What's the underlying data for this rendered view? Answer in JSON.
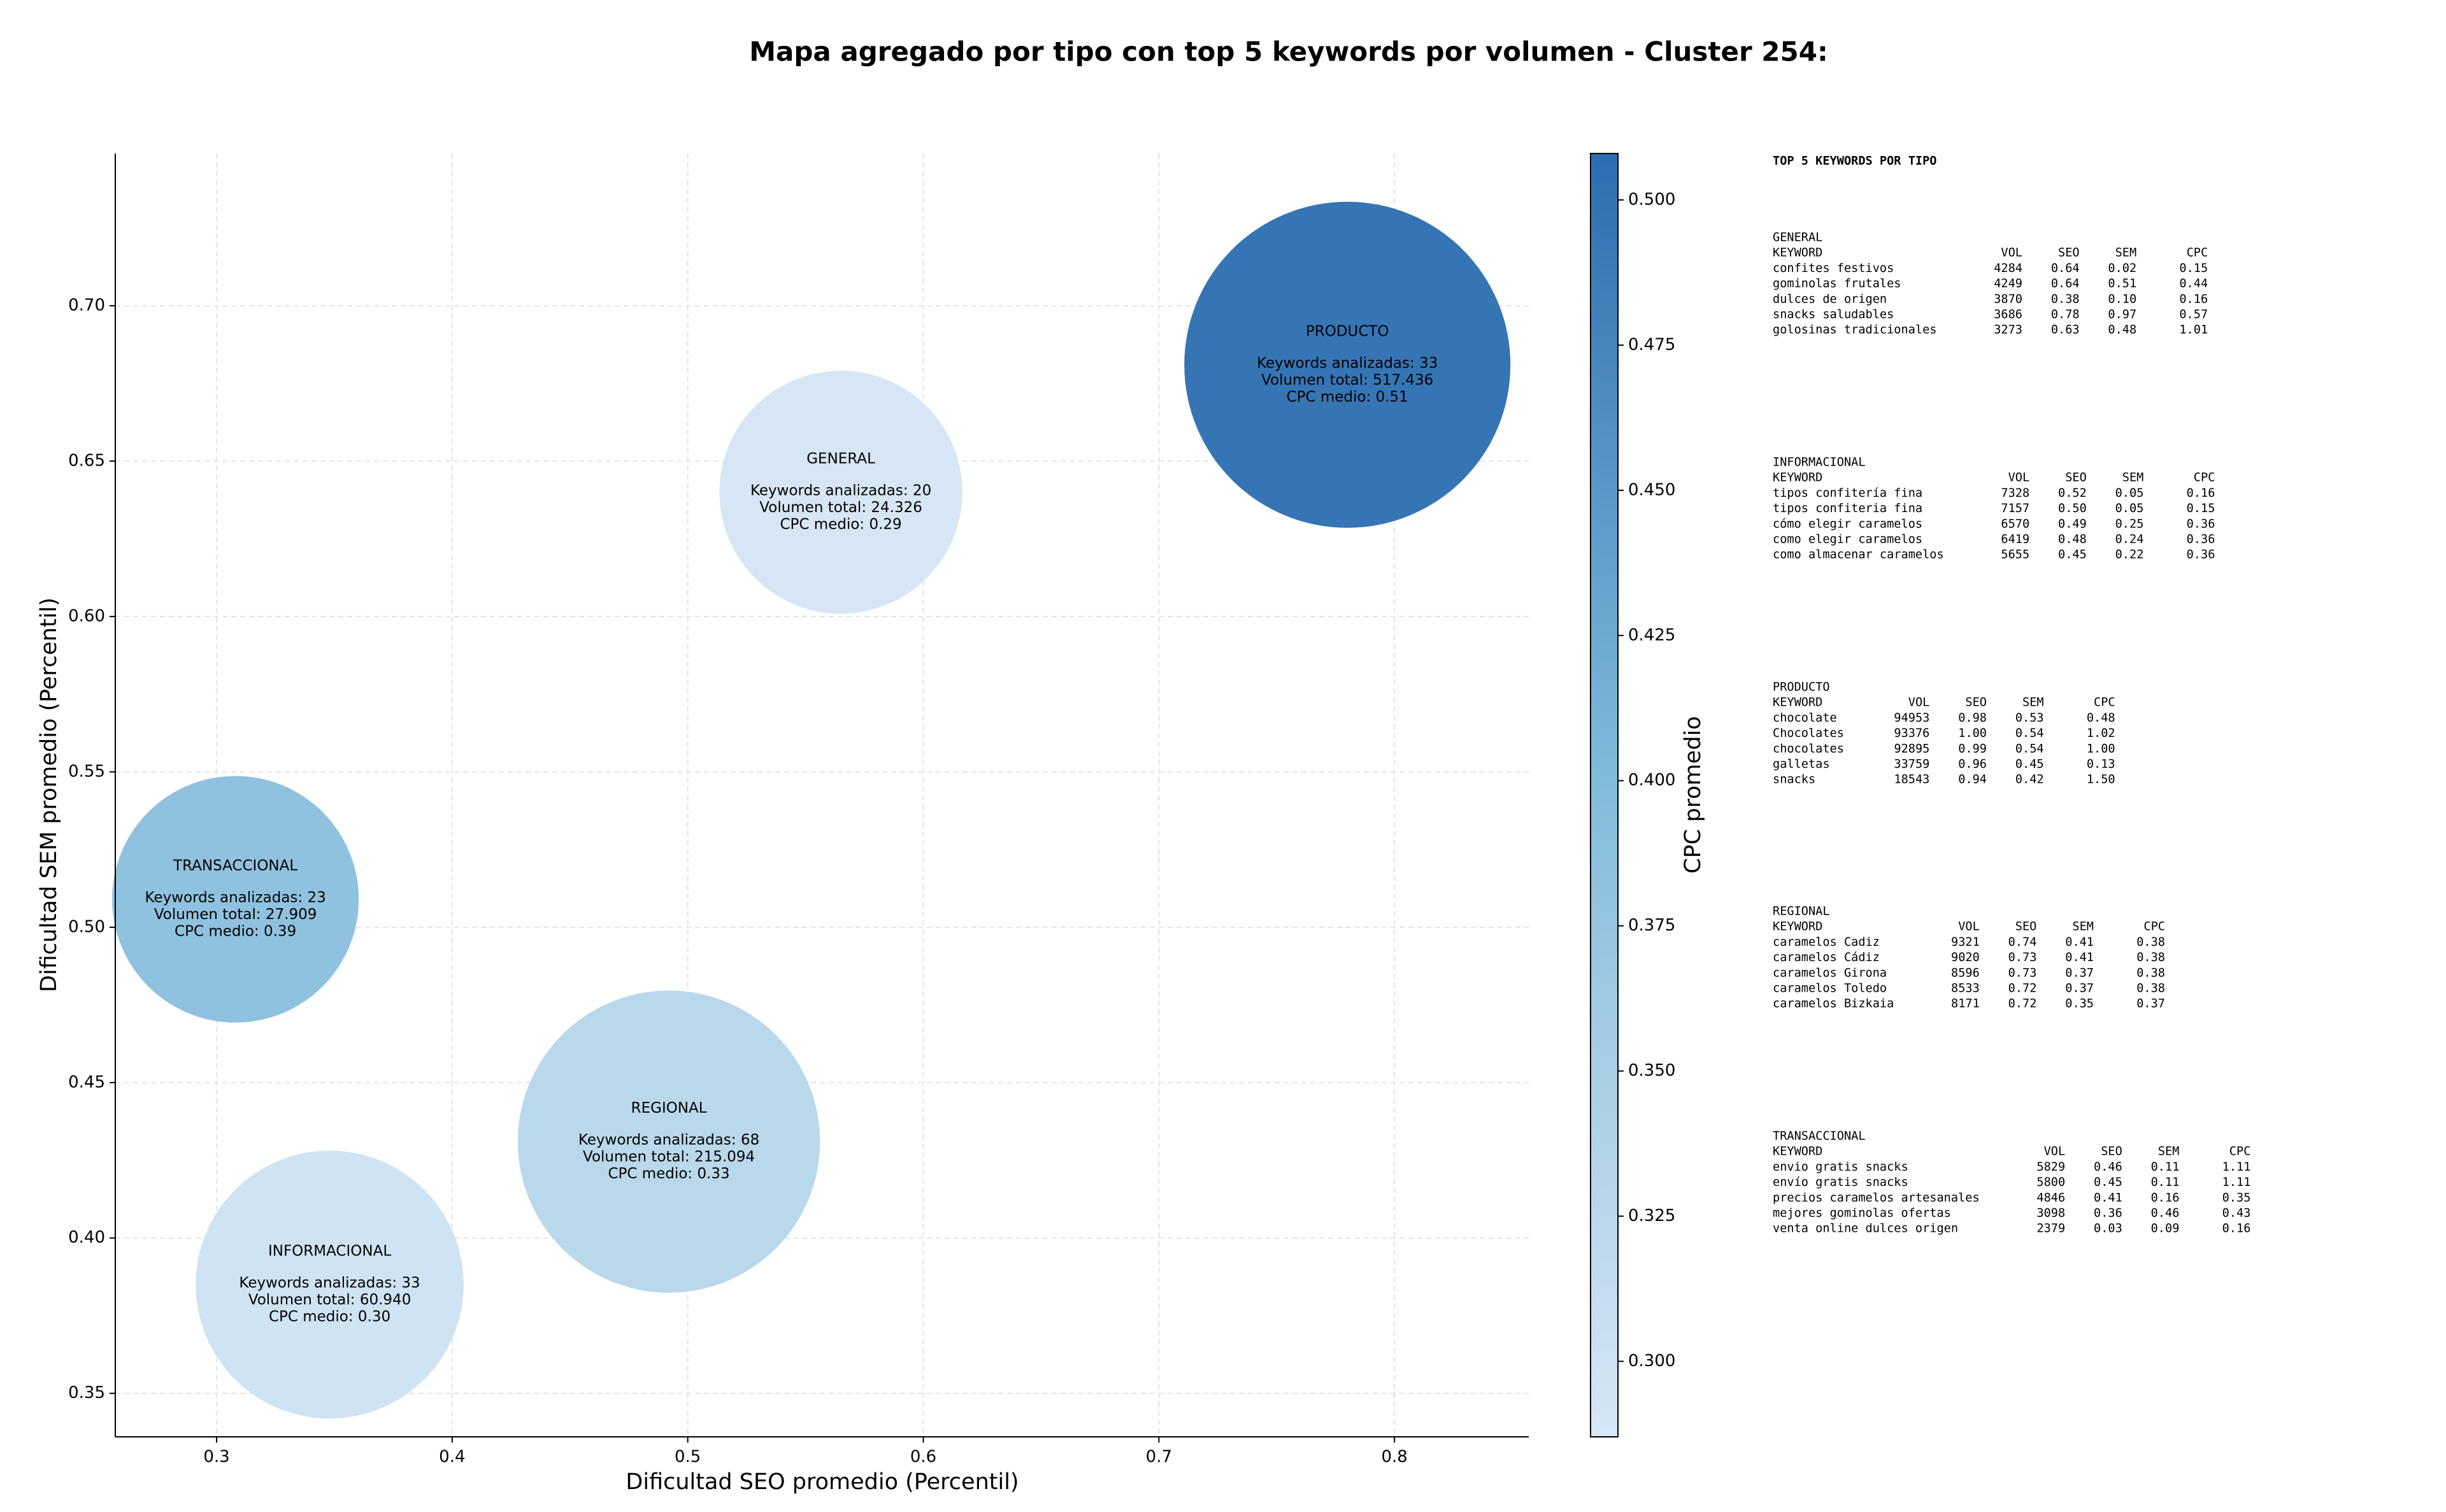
{
  "chart_data": {
    "type": "bubble",
    "title": "Mapa agregado por tipo con top 5 keywords por volumen - Cluster 254:",
    "x_label": "Dificultad SEO promedio (Percentil)",
    "y_label": "Dificultad SEM promedio (Percentil)",
    "xlim": [
      0.257,
      0.857
    ],
    "ylim": [
      0.336,
      0.749
    ],
    "xticks": [
      0.3,
      0.4,
      0.5,
      0.6,
      0.7,
      0.8
    ],
    "yticks": [
      {
        "value": 0.35,
        "label": "0.35"
      },
      {
        "value": 0.4,
        "label": "0.40"
      },
      {
        "value": 0.45,
        "label": "0.45"
      },
      {
        "value": 0.5,
        "label": "0.50"
      },
      {
        "value": 0.55,
        "label": "0.55"
      },
      {
        "value": 0.6,
        "label": "0.60"
      },
      {
        "value": 0.65,
        "label": "0.65"
      },
      {
        "value": 0.7,
        "label": "0.70"
      }
    ],
    "grid": true,
    "colorbar_label": "CPC promedio",
    "clim": [
      0.287,
      0.508
    ],
    "cticks": [
      {
        "value": 0.3,
        "label": "0.300"
      },
      {
        "value": 0.325,
        "label": "0.325"
      },
      {
        "value": 0.35,
        "label": "0.350"
      },
      {
        "value": 0.375,
        "label": "0.375"
      },
      {
        "value": 0.4,
        "label": "0.400"
      },
      {
        "value": 0.425,
        "label": "0.425"
      },
      {
        "value": 0.45,
        "label": "0.450"
      },
      {
        "value": 0.475,
        "label": "0.475"
      },
      {
        "value": 0.5,
        "label": "0.500"
      }
    ],
    "colormap": [
      "#d6e6f4",
      "#84bcdb",
      "#2b6eb0"
    ],
    "series": [
      {
        "labels": [
          "PRODUCTO",
          "GENERAL",
          "TRANSACCIONAL",
          "REGIONAL",
          "INFORMACIONAL"
        ],
        "x": [
          0.78,
          0.565,
          0.308,
          0.492,
          0.348
        ],
        "values": [
          0.681,
          0.64,
          0.509,
          0.431,
          0.385
        ],
        "sizes": [
          517436,
          24326,
          27909,
          215094,
          60940
        ],
        "color_values": [
          0.51,
          0.29,
          0.39,
          0.33,
          0.3
        ],
        "annotations": [
          [
            "Keywords analizadas: 33",
            "Volumen total: 517.436",
            "CPC medio: 0.51"
          ],
          [
            "Keywords analizadas: 20",
            "Volumen total: 24.326",
            "CPC medio: 0.29"
          ],
          [
            "Keywords analizadas: 23",
            "Volumen total: 27.909",
            "CPC medio: 0.39"
          ],
          [
            "Keywords analizadas: 68",
            "Volumen total: 215.094",
            "CPC medio: 0.33"
          ],
          [
            "Keywords analizadas: 33",
            "Volumen total: 60.940",
            "CPC medio: 0.30"
          ]
        ]
      }
    ]
  },
  "panel": {
    "title": "TOP 5 KEYWORDS POR TIPO",
    "columns": [
      "KEYWORD",
      "VOL",
      "SEO",
      "SEM",
      "CPC"
    ],
    "sections": [
      {
        "name": "GENERAL",
        "rows": [
          [
            "confites festivos",
            "4284",
            "0.64",
            "0.02",
            "0.15"
          ],
          [
            "gominolas frutales",
            "4249",
            "0.64",
            "0.51",
            "0.44"
          ],
          [
            "dulces de origen",
            "3870",
            "0.38",
            "0.10",
            "0.16"
          ],
          [
            "snacks saludables",
            "3686",
            "0.78",
            "0.97",
            "0.57"
          ],
          [
            "golosinas tradicionales",
            "3273",
            "0.63",
            "0.48",
            "1.01"
          ]
        ]
      },
      {
        "name": "INFORMACIONAL",
        "rows": [
          [
            "tipos confitería fina",
            "7328",
            "0.52",
            "0.05",
            "0.16"
          ],
          [
            "tipos confiteria fina",
            "7157",
            "0.50",
            "0.05",
            "0.15"
          ],
          [
            "cómo elegir caramelos",
            "6570",
            "0.49",
            "0.25",
            "0.36"
          ],
          [
            "como elegir caramelos",
            "6419",
            "0.48",
            "0.24",
            "0.36"
          ],
          [
            "como almacenar caramelos",
            "5655",
            "0.45",
            "0.22",
            "0.36"
          ]
        ]
      },
      {
        "name": "PRODUCTO",
        "rows": [
          [
            "chocolate",
            "94953",
            "0.98",
            "0.53",
            "0.48"
          ],
          [
            "Chocolates",
            "93376",
            "1.00",
            "0.54",
            "1.02"
          ],
          [
            "chocolates",
            "92895",
            "0.99",
            "0.54",
            "1.00"
          ],
          [
            "galletas",
            "33759",
            "0.96",
            "0.45",
            "0.13"
          ],
          [
            "snacks",
            "18543",
            "0.94",
            "0.42",
            "1.50"
          ]
        ]
      },
      {
        "name": "REGIONAL",
        "rows": [
          [
            "caramelos Cadiz",
            "9321",
            "0.74",
            "0.41",
            "0.38"
          ],
          [
            "caramelos Cádiz",
            "9020",
            "0.73",
            "0.41",
            "0.38"
          ],
          [
            "caramelos Girona",
            "8596",
            "0.73",
            "0.37",
            "0.38"
          ],
          [
            "caramelos Toledo",
            "8533",
            "0.72",
            "0.37",
            "0.38"
          ],
          [
            "caramelos Bizkaia",
            "8171",
            "0.72",
            "0.35",
            "0.37"
          ]
        ]
      },
      {
        "name": "TRANSACCIONAL",
        "rows": [
          [
            "envio gratis snacks",
            "5829",
            "0.46",
            "0.11",
            "1.11"
          ],
          [
            "envío gratis snacks",
            "5800",
            "0.45",
            "0.11",
            "1.11"
          ],
          [
            "precios caramelos artesanales",
            "4846",
            "0.41",
            "0.16",
            "0.35"
          ],
          [
            "mejores gominolas ofertas",
            "3098",
            "0.36",
            "0.46",
            "0.43"
          ],
          [
            "venta online dulces origen",
            "2379",
            "0.03",
            "0.09",
            "0.16"
          ]
        ]
      }
    ]
  }
}
